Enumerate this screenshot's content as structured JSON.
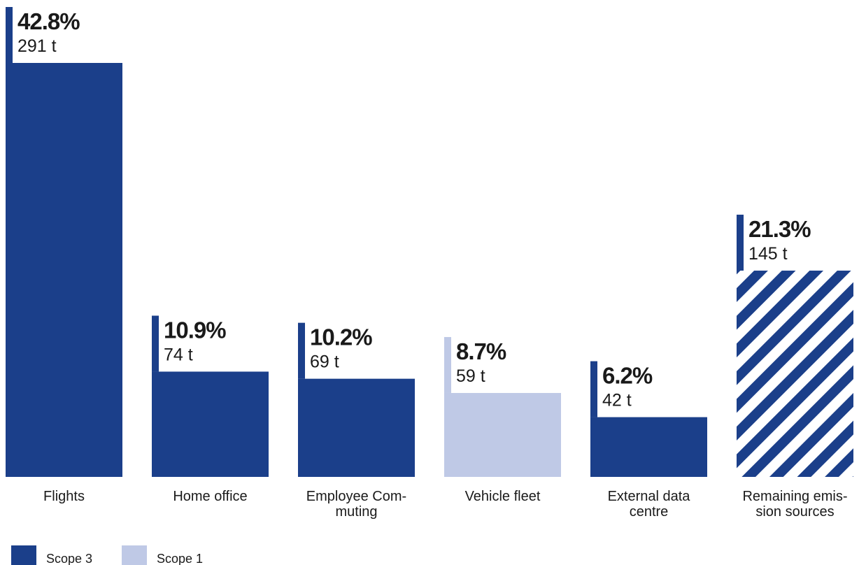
{
  "chart_data": {
    "type": "bar",
    "unit": "t",
    "categories": [
      "Flights",
      "Home office",
      "Employee Commuting",
      "Vehicle fleet",
      "External data centre",
      "Remaining emission sources"
    ],
    "category_lines": [
      [
        "Flights"
      ],
      [
        "Home office"
      ],
      [
        "Employee Com-",
        "muting"
      ],
      [
        "Vehicle fleet"
      ],
      [
        "External data",
        "centre"
      ],
      [
        "Remaining emis-",
        "sion sources"
      ]
    ],
    "values": [
      291,
      74,
      69,
      59,
      42,
      145
    ],
    "percent_labels": [
      "42.8%",
      "10.9%",
      "10.2%",
      "8.7%",
      "6.2%",
      "21.3%"
    ],
    "value_labels": [
      "291 t",
      "74 t",
      "69 t",
      "59 t",
      "42 t",
      "145 t"
    ],
    "scope": [
      "Scope 3",
      "Scope 3",
      "Scope 3",
      "Scope 1",
      "Scope 3",
      "mixed"
    ],
    "hatched": [
      false,
      false,
      false,
      false,
      false,
      true
    ],
    "ylim": [
      0,
      291
    ],
    "grid": false,
    "legend": {
      "placement": "bottom-left",
      "items": [
        {
          "label": "Scope 3",
          "color": "#1b3f8a"
        },
        {
          "label": "Scope 1",
          "color": "#bfc9e6"
        }
      ]
    }
  },
  "colors": {
    "scope3": "#1b3f8a",
    "scope1": "#bfc9e6",
    "text": "#1a1a1a"
  }
}
